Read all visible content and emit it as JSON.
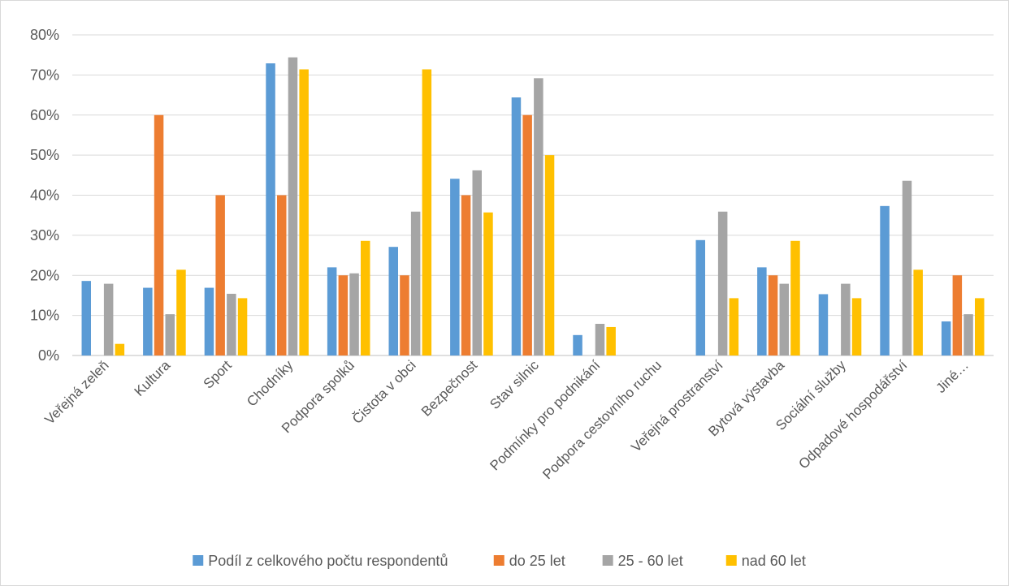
{
  "chart_data": {
    "type": "bar",
    "categories": [
      "Veřejná zeleň",
      "Kultura",
      "Sport",
      "Chodníky",
      "Podpora spolků",
      "Čistota v obci",
      "Bezpečnost",
      "Stav silnic",
      "Podmínky pro podnikání",
      "Podpora cestovního ruchu",
      "Veřejná prostranství",
      "Bytová výstavba",
      "Sociální služby",
      "Odpadové hospodářství",
      "Jiné…"
    ],
    "series": [
      {
        "name": "Podíl z celkového počtu respondentů",
        "color": "#5b9bd5",
        "values": [
          18.6,
          16.9,
          16.9,
          72.9,
          22.0,
          27.1,
          44.1,
          64.4,
          5.1,
          0,
          28.8,
          22.0,
          15.3,
          37.3,
          8.5
        ]
      },
      {
        "name": "do 25 let",
        "color": "#ed7d31",
        "values": [
          0,
          60,
          40,
          40,
          20,
          20,
          40,
          60,
          0,
          0,
          0,
          20,
          0,
          0,
          20
        ]
      },
      {
        "name": "25 - 60 let",
        "color": "#a5a5a5",
        "values": [
          17.9,
          10.3,
          15.4,
          74.4,
          20.5,
          35.9,
          46.2,
          69.2,
          7.9,
          0,
          35.9,
          17.9,
          17.9,
          43.6,
          10.3
        ]
      },
      {
        "name": "nad 60 let",
        "color": "#ffc000",
        "values": [
          2.9,
          21.4,
          14.3,
          71.4,
          28.6,
          71.4,
          35.7,
          50.0,
          7.1,
          0,
          14.3,
          28.6,
          14.3,
          21.4,
          14.3
        ]
      }
    ],
    "y_ticks": [
      "0%",
      "10%",
      "20%",
      "30%",
      "40%",
      "50%",
      "60%",
      "70%",
      "80%"
    ],
    "ylim": [
      0,
      80
    ],
    "grid": true,
    "legend_position": "bottom"
  }
}
